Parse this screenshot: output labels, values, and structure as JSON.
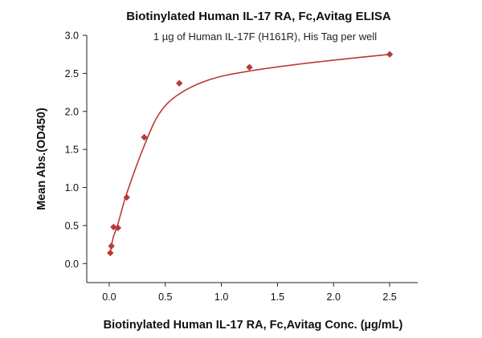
{
  "chart_data": {
    "type": "scatter",
    "title": "Biotinylated Human IL-17 RA, Fc,Avitag ELISA",
    "subtitle": "1 µg of Human IL-17F (H161R), His Tag per well",
    "xlabel": "Biotinylated Human IL-17 RA, Fc,Avitag Conc. (µg/mL)",
    "ylabel": "Mean Abs.(OD450)",
    "xlim": [
      -0.2,
      2.75
    ],
    "ylim": [
      -0.25,
      3.0
    ],
    "x_ticks": [
      "0.0",
      "0.5",
      "1.0",
      "1.5",
      "2.0",
      "2.5"
    ],
    "y_ticks": [
      "0.0",
      "0.5",
      "1.0",
      "1.5",
      "2.0",
      "2.5",
      "3.0"
    ],
    "grid": false,
    "legend": "none",
    "color": "#b83a3a",
    "series": [
      {
        "points": [
          {
            "x": 0.0098,
            "y": 0.14
          },
          {
            "x": 0.0195,
            "y": 0.23
          },
          {
            "x": 0.039,
            "y": 0.48
          },
          {
            "x": 0.078,
            "y": 0.47
          },
          {
            "x": 0.156,
            "y": 0.87
          },
          {
            "x": 0.3125,
            "y": 1.66
          },
          {
            "x": 0.625,
            "y": 2.37
          },
          {
            "x": 1.25,
            "y": 2.58
          },
          {
            "x": 2.5,
            "y": 2.75
          }
        ],
        "fit": "4PL"
      }
    ]
  }
}
